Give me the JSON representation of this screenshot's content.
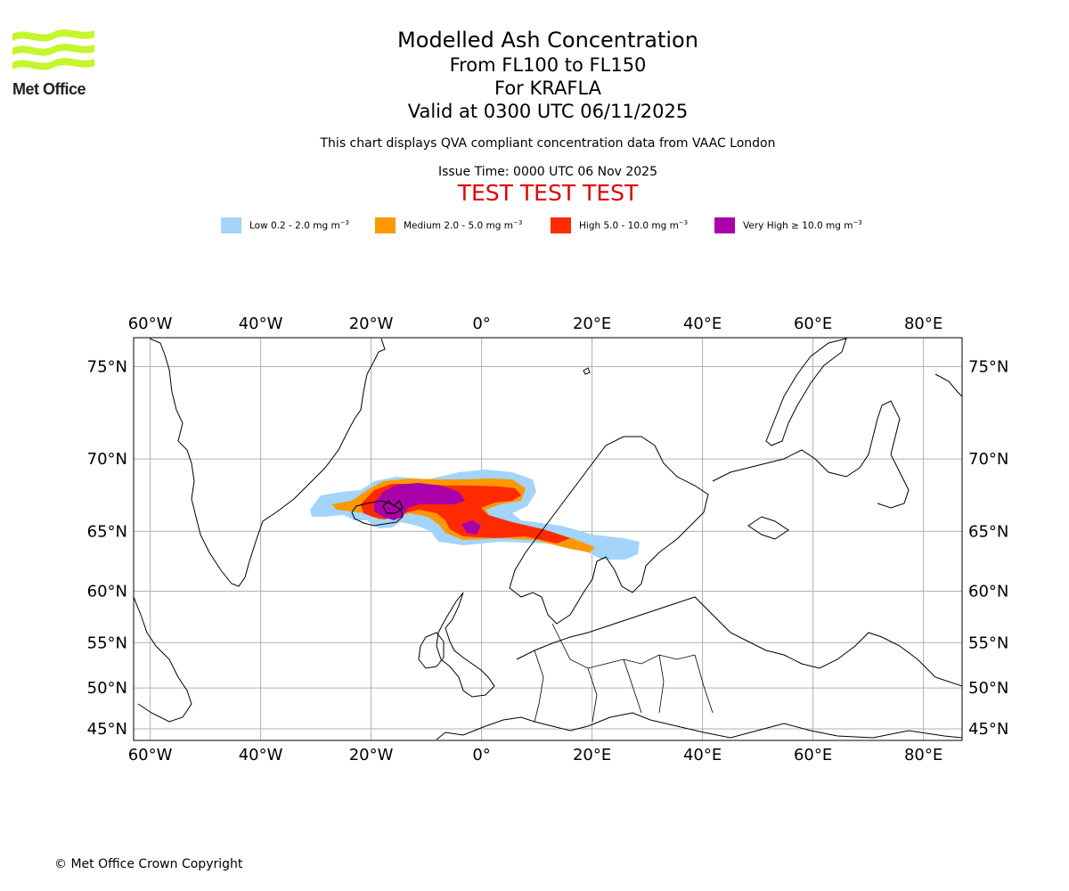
{
  "brand": {
    "logo_text": "Met Office"
  },
  "header": {
    "title": "Modelled Ash Concentration",
    "level_range": "From FL100 to FL150",
    "volcano": "For KRAFLA",
    "valid_time": "Valid at 0300 UTC 06/11/2025",
    "description": "This chart displays QVA compliant concentration data from VAAC London",
    "issue_time": "Issue Time: 0000 UTC 06 Nov 2025",
    "test_banner": "TEST TEST TEST"
  },
  "legend": [
    {
      "label": "Low 0.2 - 2.0 mg m",
      "exp": "−3",
      "color": "#a3d4fc"
    },
    {
      "label": "Medium 2.0 - 5.0 mg m",
      "exp": "−3",
      "color": "#fd9800"
    },
    {
      "label": "High 5.0 - 10.0 mg m",
      "exp": "−3",
      "color": "#ff2a00"
    },
    {
      "label": "Very High ≥ 10.0 mg m",
      "exp": "−3",
      "color": "#aa00aa"
    }
  ],
  "map": {
    "longitude_labels": [
      "60°W",
      "40°W",
      "20°W",
      "0°",
      "20°E",
      "40°E",
      "60°E",
      "80°E"
    ],
    "latitude_labels": [
      "75°N",
      "70°N",
      "65°N",
      "60°N",
      "55°N",
      "50°N",
      "45°N"
    ],
    "longitudes": [
      -60,
      -40,
      -20,
      0,
      20,
      40,
      60,
      80
    ],
    "latitudes": [
      75,
      70,
      65,
      60,
      55,
      50,
      45
    ],
    "extent": {
      "lon_min": -63,
      "lon_max": 87,
      "lat_min": 43.5,
      "lat_max": 76.3
    },
    "volcano_location": {
      "name": "KRAFLA",
      "lon": -16.8,
      "lat": 65.7
    }
  },
  "footer": {
    "copyright": "© Met Office Crown Copyright"
  }
}
